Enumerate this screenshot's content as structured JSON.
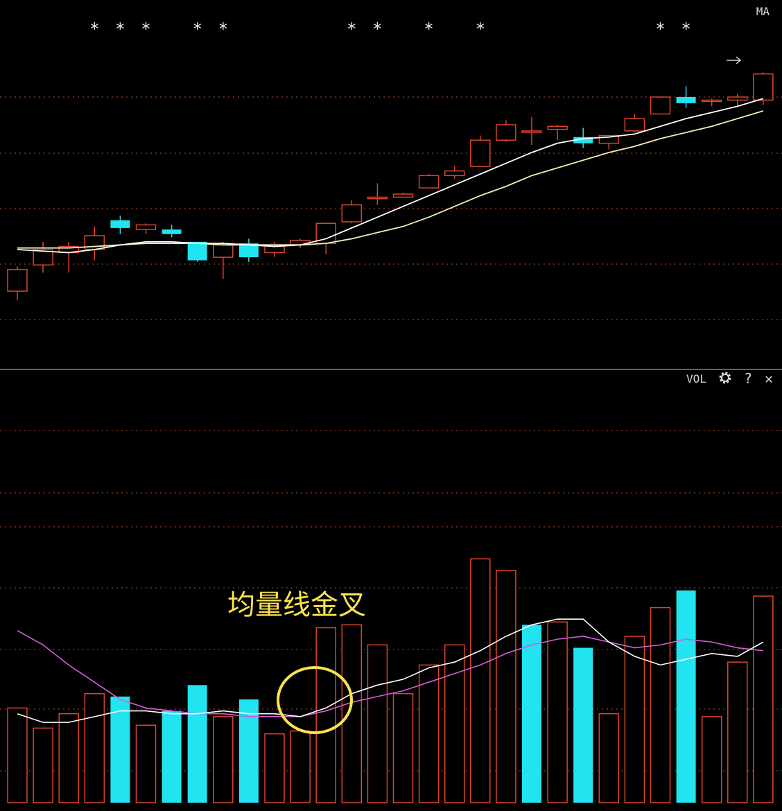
{
  "price_panel": {
    "indicator_label": "MA",
    "signal_marker": "*",
    "signal_indices": [
      3,
      4,
      5,
      7,
      8,
      13,
      14,
      16,
      18,
      25,
      26
    ]
  },
  "volume_panel": {
    "indicator_label": "VOL",
    "icons": [
      "gear-icon",
      "help-icon",
      "close-icon"
    ],
    "help_glyph": "?",
    "close_glyph": "✕",
    "annotation": "均量线金叉"
  },
  "colors": {
    "background": "#000000",
    "up": "#e0442a",
    "down": "#22e4f0",
    "ma_short": "#ffffff",
    "ma_long": "#f2eeb0",
    "vol_ma_short": "#ffffff",
    "vol_ma_long": "#d85cd8",
    "grid": "#a83818",
    "annotation": "#ffe34d"
  },
  "chart_data": [
    {
      "type": "candlestick",
      "candles": [
        {
          "open": 1.8,
          "close": 3.2,
          "high": 3.4,
          "low": 1.2
        },
        {
          "open": 3.5,
          "close": 4.5,
          "high": 5.0,
          "low": 3.0
        },
        {
          "open": 4.3,
          "close": 4.7,
          "high": 5.0,
          "low": 3.0
        },
        {
          "open": 4.5,
          "close": 5.4,
          "high": 6.0,
          "low": 3.8
        },
        {
          "open": 6.4,
          "close": 5.9,
          "high": 6.7,
          "low": 5.5
        },
        {
          "open": 5.8,
          "close": 6.1,
          "high": 6.2,
          "low": 5.5
        },
        {
          "open": 5.8,
          "close": 5.5,
          "high": 6.1,
          "low": 5.3
        },
        {
          "open": 5.0,
          "close": 3.8,
          "high": 5.0,
          "low": 3.7
        },
        {
          "open": 4.0,
          "close": 4.8,
          "high": 5.0,
          "low": 2.6
        },
        {
          "open": 4.9,
          "close": 4.0,
          "high": 5.2,
          "low": 3.7
        },
        {
          "open": 4.3,
          "close": 4.8,
          "high": 5.0,
          "low": 4.0
        },
        {
          "open": 4.8,
          "close": 5.1,
          "high": 5.2,
          "low": 4.6
        },
        {
          "open": 4.9,
          "close": 6.2,
          "high": 6.2,
          "low": 4.2
        },
        {
          "open": 6.3,
          "close": 7.4,
          "high": 7.7,
          "low": 6.2
        },
        {
          "open": 7.8,
          "close": 7.9,
          "high": 8.8,
          "low": 7.4
        },
        {
          "open": 7.9,
          "close": 8.1,
          "high": 8.2,
          "low": 7.9
        },
        {
          "open": 8.5,
          "close": 9.3,
          "high": 9.4,
          "low": 8.5
        },
        {
          "open": 9.3,
          "close": 9.6,
          "high": 9.9,
          "low": 9.1
        },
        {
          "open": 9.9,
          "close": 11.6,
          "high": 11.9,
          "low": 9.9
        },
        {
          "open": 11.6,
          "close": 12.6,
          "high": 12.9,
          "low": 11.5
        },
        {
          "open": 12.2,
          "close": 12.2,
          "high": 13.1,
          "low": 11.3
        },
        {
          "open": 12.3,
          "close": 12.5,
          "high": 12.6,
          "low": 11.6
        },
        {
          "open": 11.8,
          "close": 11.4,
          "high": 12.4,
          "low": 11.1
        },
        {
          "open": 11.4,
          "close": 11.9,
          "high": 11.9,
          "low": 11.0
        },
        {
          "open": 12.2,
          "close": 13.0,
          "high": 13.3,
          "low": 12.1
        },
        {
          "open": 13.3,
          "close": 14.4,
          "high": 14.4,
          "low": 13.3
        },
        {
          "open": 14.4,
          "close": 14.0,
          "high": 15.1,
          "low": 13.7
        },
        {
          "open": 14.2,
          "close": 14.2,
          "high": 14.3,
          "low": 13.8
        },
        {
          "open": 14.2,
          "close": 14.4,
          "high": 14.6,
          "low": 13.8
        },
        {
          "open": 14.2,
          "close": 15.9,
          "high": 16.0,
          "low": 13.9
        }
      ],
      "ma_short": [
        4.5,
        4.4,
        4.3,
        4.5,
        4.8,
        5.0,
        5.0,
        4.9,
        4.9,
        4.8,
        4.7,
        4.8,
        5.2,
        5.9,
        6.6,
        7.3,
        8.0,
        8.7,
        9.4,
        10.1,
        10.8,
        11.4,
        11.7,
        11.8,
        12.0,
        12.5,
        13.0,
        13.4,
        13.8,
        14.3
      ],
      "ma_long": [
        4.6,
        4.6,
        4.6,
        4.7,
        4.8,
        4.9,
        4.9,
        4.9,
        4.8,
        4.8,
        4.8,
        4.8,
        4.9,
        5.2,
        5.6,
        6.0,
        6.6,
        7.3,
        8.0,
        8.6,
        9.3,
        9.8,
        10.3,
        10.8,
        11.2,
        11.7,
        12.1,
        12.5,
        13.0,
        13.5
      ],
      "ylim": [
        0,
        18
      ]
    },
    {
      "type": "bar",
      "values": [
        3.3,
        2.6,
        3.1,
        3.8,
        3.7,
        2.7,
        3.2,
        4.1,
        3.0,
        3.6,
        2.4,
        2.5,
        6.1,
        6.2,
        5.5,
        3.8,
        4.8,
        5.5,
        8.5,
        8.1,
        6.2,
        6.3,
        5.4,
        3.1,
        5.8,
        6.8,
        7.4,
        3.0,
        4.9,
        7.2
      ],
      "direction": [
        "up",
        "up",
        "up",
        "up",
        "down",
        "up",
        "down",
        "down",
        "up",
        "down",
        "up",
        "up",
        "up",
        "up",
        "up",
        "up",
        "up",
        "up",
        "up",
        "up",
        "down",
        "up",
        "down",
        "up",
        "up",
        "up",
        "down",
        "up",
        "up",
        "up"
      ],
      "ma_short": [
        3.1,
        2.8,
        2.8,
        3.0,
        3.2,
        3.2,
        3.1,
        3.1,
        3.2,
        3.1,
        3.1,
        3.0,
        3.3,
        3.8,
        4.1,
        4.3,
        4.7,
        4.9,
        5.3,
        5.8,
        6.2,
        6.4,
        6.4,
        5.6,
        5.1,
        4.8,
        5.0,
        5.2,
        5.1,
        5.6
      ],
      "ma_long": [
        6.0,
        5.5,
        4.8,
        4.2,
        3.6,
        3.3,
        3.2,
        3.1,
        3.1,
        3.0,
        3.0,
        3.0,
        3.2,
        3.5,
        3.7,
        3.9,
        4.2,
        4.5,
        4.8,
        5.2,
        5.5,
        5.7,
        5.8,
        5.6,
        5.4,
        5.5,
        5.7,
        5.6,
        5.4,
        5.3
      ],
      "ylim": [
        0,
        13
      ]
    }
  ]
}
